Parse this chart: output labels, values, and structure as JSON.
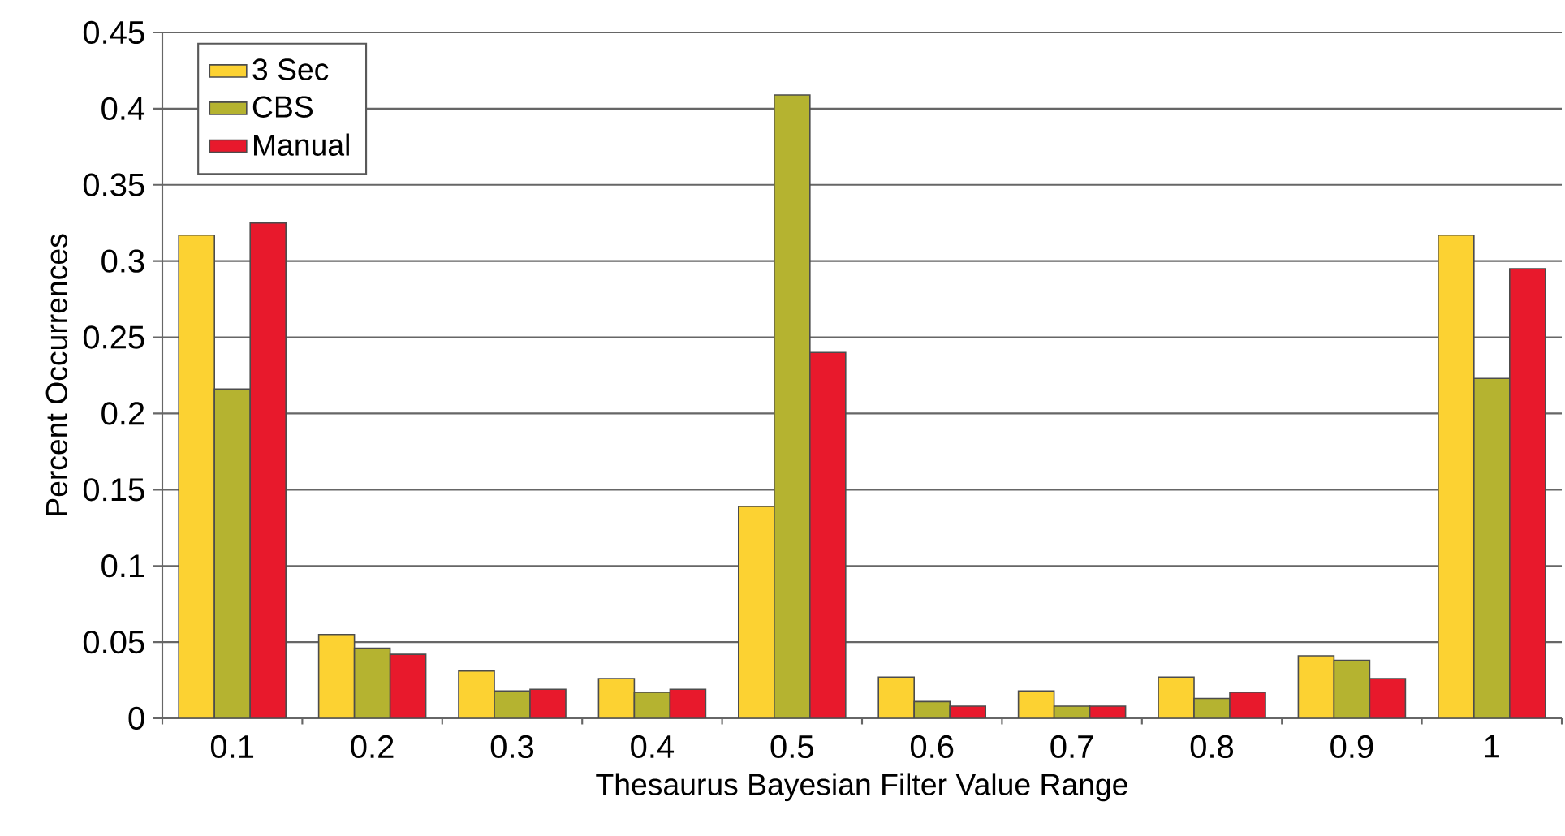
{
  "chart_data": {
    "type": "bar",
    "xlabel": "Thesaurus Bayesian Filter Value Range",
    "ylabel": "Percent Occurrences",
    "categories": [
      "0.1",
      "0.2",
      "0.3",
      "0.4",
      "0.5",
      "0.6",
      "0.7",
      "0.8",
      "0.9",
      "1"
    ],
    "series": [
      {
        "name": "3 Sec",
        "color": "#fcd232",
        "values": [
          0.317,
          0.055,
          0.031,
          0.026,
          0.139,
          0.027,
          0.018,
          0.027,
          0.041,
          0.317
        ]
      },
      {
        "name": "CBS",
        "color": "#b5b330",
        "values": [
          0.216,
          0.046,
          0.018,
          0.017,
          0.409,
          0.011,
          0.008,
          0.013,
          0.038,
          0.223
        ]
      },
      {
        "name": "Manual",
        "color": "#e8192c",
        "values": [
          0.325,
          0.042,
          0.019,
          0.019,
          0.24,
          0.008,
          0.008,
          0.017,
          0.026,
          0.295
        ]
      }
    ],
    "ylim": [
      0,
      0.45
    ],
    "yticks": [
      0,
      0.05,
      0.1,
      0.15,
      0.2,
      0.25,
      0.3,
      0.35,
      0.4,
      0.45
    ],
    "grid": "y",
    "legend": "top left"
  }
}
